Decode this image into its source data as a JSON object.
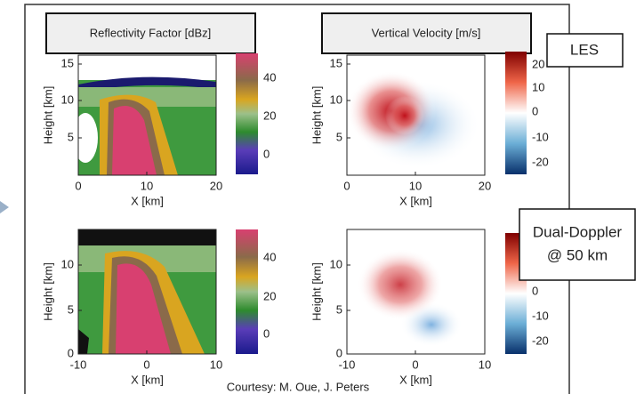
{
  "titles": [
    "Reflectivity Factor [dBz]",
    "Vertical Velocity [m/s]"
  ],
  "row_labels": {
    "les": "LES",
    "dual": [
      "Dual-Doppler",
      "@ 50 km"
    ]
  },
  "plots": [
    {
      "ylabel": "Height [km]",
      "xlabel": "X [km]",
      "xticks": [
        0,
        10,
        20
      ],
      "yticks": [
        15,
        10,
        5
      ],
      "cbar_ticks": [
        40,
        20,
        0
      ]
    },
    {
      "ylabel": "Height [km]",
      "xlabel": "X [km]",
      "xticks": [
        0,
        10,
        20
      ],
      "yticks": [
        15,
        10,
        5
      ],
      "cbar_ticks": [
        20,
        10,
        0,
        -10,
        -20
      ]
    },
    {
      "ylabel": "Height [km]",
      "xlabel": "X [km]",
      "xticks": [
        -10,
        0,
        10
      ],
      "yticks": [
        10,
        5,
        0
      ],
      "cbar_ticks": [
        40,
        20,
        0
      ]
    },
    {
      "ylabel": "Height [km]",
      "xlabel": "X [km]",
      "xticks": [
        -10,
        0,
        10
      ],
      "yticks": [
        10,
        5,
        0
      ],
      "cbar_ticks": [
        0,
        -10,
        -20
      ]
    }
  ],
  "credit": "Courtesy: M. Oue, J. Peters"
}
